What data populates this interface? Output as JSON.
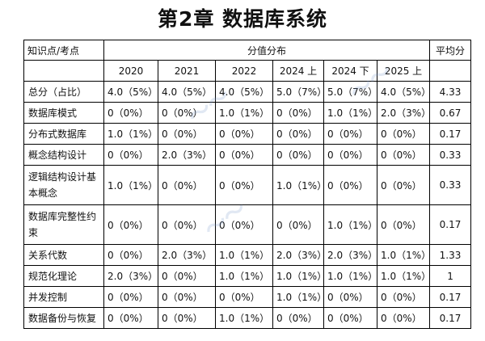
{
  "title": "第2章  数据库系统",
  "header": {
    "kp_label": "知识点/考点",
    "dist_label": "分值分布",
    "avg_label": "平均分",
    "years": [
      "2020",
      "2021",
      "2022",
      "2024 上",
      "2024 下",
      "2025 上"
    ]
  },
  "rows": [
    {
      "name": "总分（占比）",
      "values": [
        "4.0（5%）",
        "4.0（5%）",
        "4.0（5%）",
        "5.0（7%）",
        "5.0（7%）",
        "4.0（5%）"
      ],
      "avg": "4.33"
    },
    {
      "name": "数据库模式",
      "values": [
        "0（0%）",
        "0（0%）",
        "1.0（1%）",
        "0（0%）",
        "1.0（1%）",
        "2.0（3%）"
      ],
      "avg": "0.67"
    },
    {
      "name": "分布式数据库",
      "values": [
        "1.0（1%）",
        "0（0%）",
        "0（0%）",
        "0（0%）",
        "0（0%）",
        "0（0%）"
      ],
      "avg": "0.17"
    },
    {
      "name": "概念结构设计",
      "values": [
        "0（0%）",
        "2.0（3%）",
        "0（0%）",
        "0（0%）",
        "0（0%）",
        "0（0%）"
      ],
      "avg": "0.33"
    },
    {
      "name": "逻辑结构设计基本概念",
      "values": [
        "1.0（1%）",
        "0（0%）",
        "0（0%）",
        "1.0（1%）",
        "0（0%）",
        "0（0%）"
      ],
      "avg": "0.33"
    },
    {
      "name": "数据库完整性约束",
      "values": [
        "0（0%）",
        "0（0%）",
        "0（0%）",
        "0（0%）",
        "1.0（1%）",
        "0（0%）"
      ],
      "avg": "0.17"
    },
    {
      "name": "关系代数",
      "values": [
        "0（0%）",
        "2.0（3%）",
        "1.0（1%）",
        "2.0（3%）",
        "2.0（3%）",
        "1.0（1%）"
      ],
      "avg": "1.33"
    },
    {
      "name": "规范化理论",
      "values": [
        "2.0（3%）",
        "0（0%）",
        "1.0（1%）",
        "1.0（1%）",
        "1.0（1%）",
        "1.0（1%）"
      ],
      "avg": "1"
    },
    {
      "name": "并发控制",
      "values": [
        "0（0%）",
        "0（0%）",
        "0（0%）",
        "1.0（1%）",
        "0（0%）",
        "0（0%）"
      ],
      "avg": "0.17"
    },
    {
      "name": "数据备份与恢复",
      "values": [
        "0（0%）",
        "0（0%）",
        "1.0（1%）",
        "0（0%）",
        "0（0%）",
        "0（0%）"
      ],
      "avg": "0.17"
    }
  ]
}
